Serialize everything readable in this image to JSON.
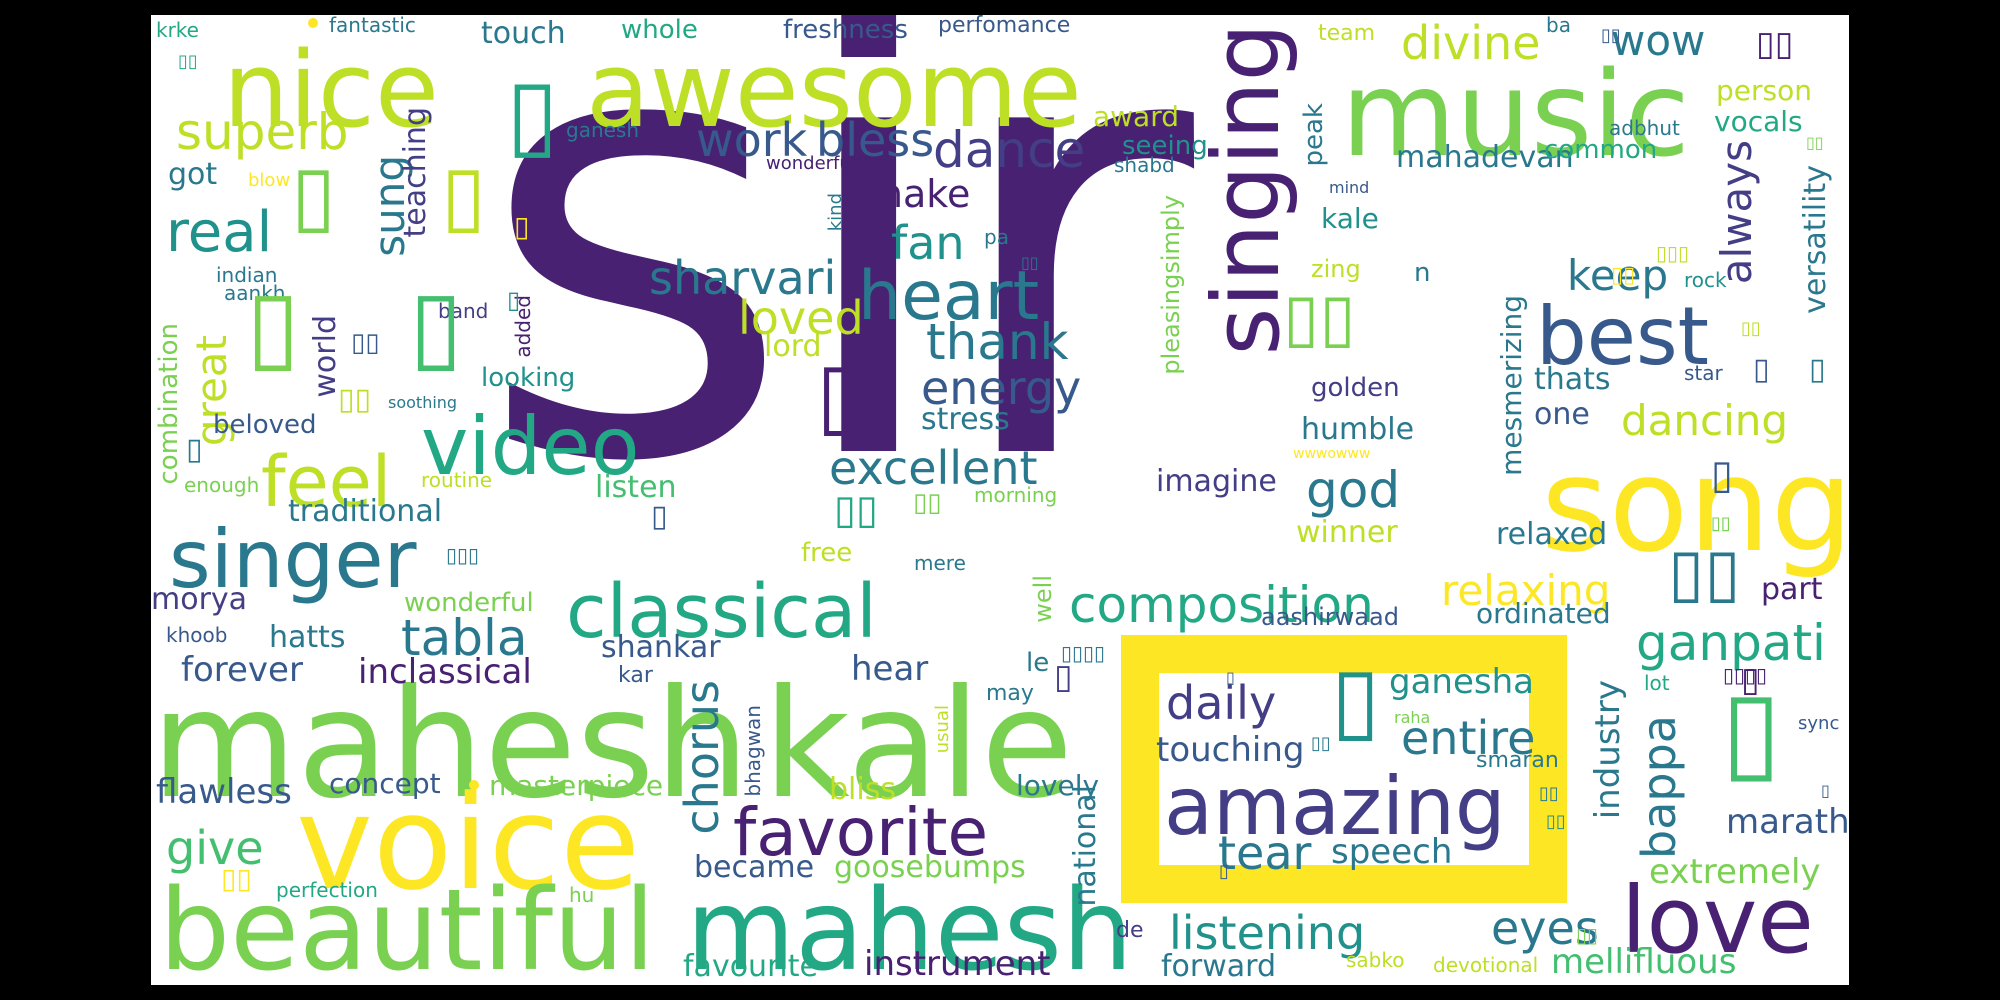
{
  "words": {
    "sir": "sir",
    "mahesh_big": "mahesh",
    "kale_big": "kale",
    "voice": "voice",
    "beautiful": "beautiful",
    "mahesh_mid": "mahesh",
    "song": "song",
    "music": "music",
    "awesome": "awesome",
    "nice": "nice",
    "singing": "singing",
    "love": "love",
    "amazing": "amazing",
    "singer": "singer",
    "video": "video",
    "classical": "classical",
    "favorite": "favorite",
    "best": "best",
    "heart": "heart",
    "feel": "feel",
    "composition": "composition",
    "superb": "superb",
    "real": "real",
    "tabla": "tabla",
    "thank": "thank",
    "energy": "energy",
    "excellent": "excellent",
    "sharvari": "sharvari",
    "dance": "dance",
    "work": "work",
    "bless": "bless",
    "chorus": "chorus",
    "daily": "daily",
    "entire": "entire",
    "listening": "listening",
    "eyes": "eyes",
    "ganpati": "ganpati",
    "dancing": "dancing",
    "relaxing": "relaxing",
    "god": "god",
    "keep": "keep",
    "bappa": "bappa",
    "divine": "divine",
    "wow": "wow",
    "loved": "loved",
    "fan": "fan",
    "make": "make",
    "give": "give",
    "tear": "tear",
    "speech": "speech",
    "sung": "sung",
    "great": "great",
    "always": "always",
    "versatility": "versatility",
    "touching": "touching",
    "ganesha": "ganesha",
    "mellifluous": "mellifluous",
    "extremely": "extremely",
    "marathi": "marathi",
    "industry": "industry",
    "national": "national",
    "instrument": "instrument",
    "favourite": "favourite",
    "forward": "forward",
    "became": "became",
    "goosebumps": "goosebumps",
    "bliss": "bliss",
    "flawless": "flawless",
    "concept": "concept",
    "masterpiece": "masterpiece",
    "forever": "forever",
    "inclassical": "inclassical",
    "hear": "hear",
    "shankar": "shankar",
    "morya": "morya",
    "hatts": "hatts",
    "wonderful": "wonderful",
    "traditional": "traditional",
    "listen": "listen",
    "imagine": "imagine",
    "winner": "winner",
    "relaxed": "relaxed",
    "ordinated": "ordinated",
    "aashirwaad": "aashirwaad",
    "part": "part",
    "humble": "humble",
    "one": "one",
    "thats": "thats",
    "golden": "golden",
    "mesmerizing": "mesmerizing",
    "combination": "combination",
    "beloved": "beloved",
    "stress": "stress",
    "looking": "looking",
    "lord": "lord",
    "world": "world",
    "teaching": "teaching",
    "got": "got",
    "touch": "touch",
    "whole": "whole",
    "freshness": "freshness",
    "perfomance": "perfomance",
    "team": "team",
    "ba": "ba",
    "adbhut": "adbhut",
    "person": "person",
    "vocals": "vocals",
    "common": "common",
    "mahadevan": "mahadevan",
    "seeing": "seeing",
    "award": "award",
    "shabd": "shabd",
    "peak": "peak",
    "kale_small": "kale",
    "mind": "mind",
    "kind": "kind",
    "pa": "pa",
    "zing": "zing",
    "n": "n",
    "pleasingsimply": "pleasingsimply",
    "added": "added",
    "aankh": "aankh",
    "indian": "indian",
    "band": "band",
    "rock": "rock",
    "star": "star",
    "wwwowww": "wwwowww",
    "soothing": "soothing",
    "enough": "enough",
    "routine": "routine",
    "morning": "morning",
    "free": "free",
    "mere": "mere",
    "well": "well",
    "le": "le",
    "may": "may",
    "usual": "usual",
    "bhagwan": "bhagwan",
    "kar": "kar",
    "khoob": "khoob",
    "lovely": "lovely",
    "smaran": "smaran",
    "raha": "raha",
    "lot": "lot",
    "sync": "sync",
    "hu": "hu",
    "de": "de",
    "sabko": "sabko",
    "devotional": "devotional",
    "perfection": "perfection",
    "krke": "krke",
    "fantastic": "fantastic",
    "ganesh": "ganesh",
    "wonderfully": "wonderfully",
    "blow": "blow",
    "glyph": "▯",
    "glyph2": "▯▯",
    "glyph3": "▯▯▯",
    "glyph4": "▯▯▯▯"
  },
  "colors": {
    "background": "#ffffff",
    "frame": "#000000",
    "deep_purple": "#482173",
    "indigo": "#433e85",
    "blue": "#38598c",
    "teal": "#2a788e",
    "cyan": "#21918c",
    "green_teal": "#22a884",
    "green": "#44bf70",
    "lime": "#7ad151",
    "yellow_green": "#bddf26",
    "yellow": "#fde725"
  }
}
